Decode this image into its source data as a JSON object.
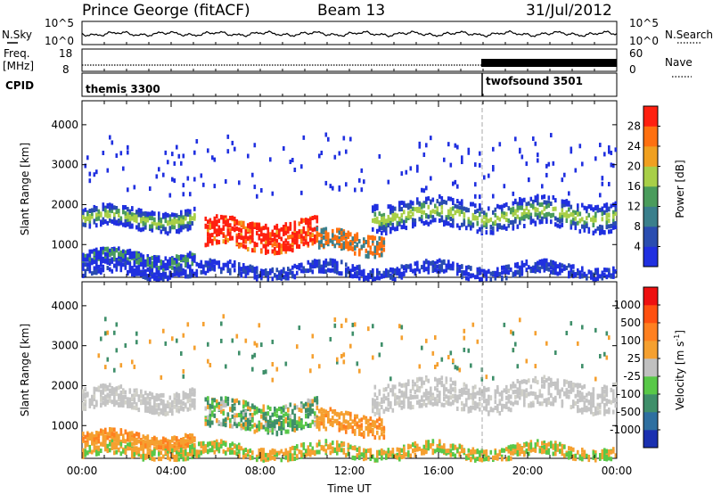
{
  "header": {
    "station": "Prince George (fitACF)",
    "beam": "Beam 13",
    "date": "31/Jul/2012"
  },
  "noise_panel": {
    "left_label": "N.Sky",
    "right_label": "N.Search",
    "left_ticks": [
      "10^5",
      "10^0"
    ],
    "right_ticks": [
      "10^5",
      "10^0"
    ]
  },
  "freq_panel": {
    "left_label": "Freq.",
    "left_unit": "[MHz]",
    "right_label": "Nave",
    "left_ticks": [
      "18",
      "8"
    ],
    "right_ticks": [
      "60",
      "0"
    ]
  },
  "cpid_panel": {
    "label": "CPID",
    "programs": [
      {
        "name": "themis 3300",
        "start_hour": 0
      },
      {
        "name": "twofsound 3501",
        "start_hour": 18
      }
    ]
  },
  "chart_data": [
    {
      "type": "heatmap",
      "id": "power",
      "ylabel": "Slant Range [km]",
      "xlim_hours": [
        0,
        24
      ],
      "ylim": [
        180,
        4600
      ],
      "yticks": [
        "4000",
        "3000",
        "2000",
        "1000"
      ],
      "colorbar_label": "Power [dB]",
      "colorbar_ticks": [
        "28",
        "24",
        "20",
        "16",
        "12",
        "8",
        "4"
      ],
      "colorbar_colors": [
        "#2030e0",
        "#2a4db0",
        "#3a7f8c",
        "#4a9c5c",
        "#a8cf48",
        "#f0a020",
        "#ff7010",
        "#ff2010"
      ],
      "mode_change_hour": 18
    },
    {
      "type": "heatmap",
      "id": "velocity",
      "ylabel": "Slant Range [km]",
      "xlim_hours": [
        0,
        24
      ],
      "ylim": [
        180,
        4600
      ],
      "yticks": [
        "4000",
        "3000",
        "2000",
        "1000"
      ],
      "xticks": [
        "00:00",
        "04:00",
        "08:00",
        "12:00",
        "16:00",
        "20:00",
        "00:00"
      ],
      "xlabel": "Time UT",
      "colorbar_label": "Velocity [m s",
      "colorbar_label_sup": "-1",
      "colorbar_ticks": [
        "1000",
        "500",
        "100",
        "25",
        "-25",
        "-100",
        "-500",
        "-1000"
      ],
      "colorbar_colors": [
        "#1a30b0",
        "#2e6fa0",
        "#3f8f6a",
        "#58c848",
        "#c0c0c0",
        "#f5a030",
        "#ff8020",
        "#ff5010",
        "#ee1010"
      ],
      "mode_change_hour": 18
    }
  ]
}
